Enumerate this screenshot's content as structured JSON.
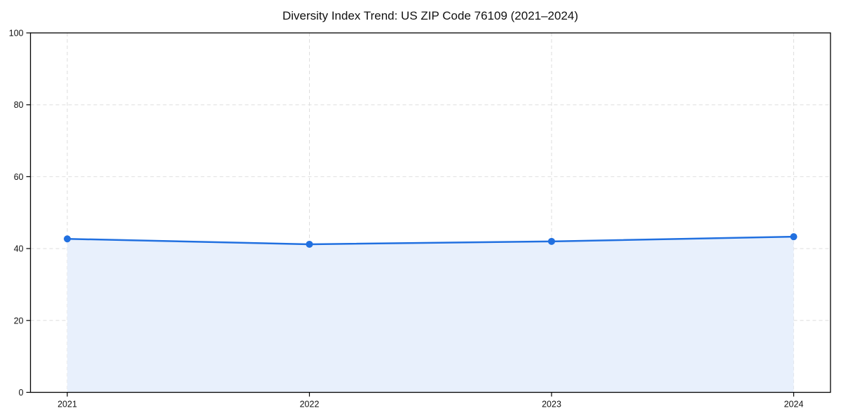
{
  "chart_data": {
    "type": "line",
    "title": "Diversity Index Trend: US ZIP Code 76109 (2021–2024)",
    "categories": [
      "2021",
      "2022",
      "2023",
      "2024"
    ],
    "series": [
      {
        "name": "Diversity Index",
        "values": [
          42.7,
          41.2,
          42.0,
          43.3
        ]
      }
    ],
    "xlabel": "",
    "ylabel": "",
    "ylim": [
      0,
      100
    ],
    "yticks": [
      0,
      20,
      40,
      60,
      80,
      100
    ],
    "grid": "dashed-both",
    "legend_position": "none",
    "area_fill": true,
    "colors": {
      "line": "#2170e0",
      "marker": "#2170e0",
      "fill": "#e8f0fc",
      "grid": "#dedede",
      "spine": "#000000",
      "text": "#111111"
    }
  }
}
